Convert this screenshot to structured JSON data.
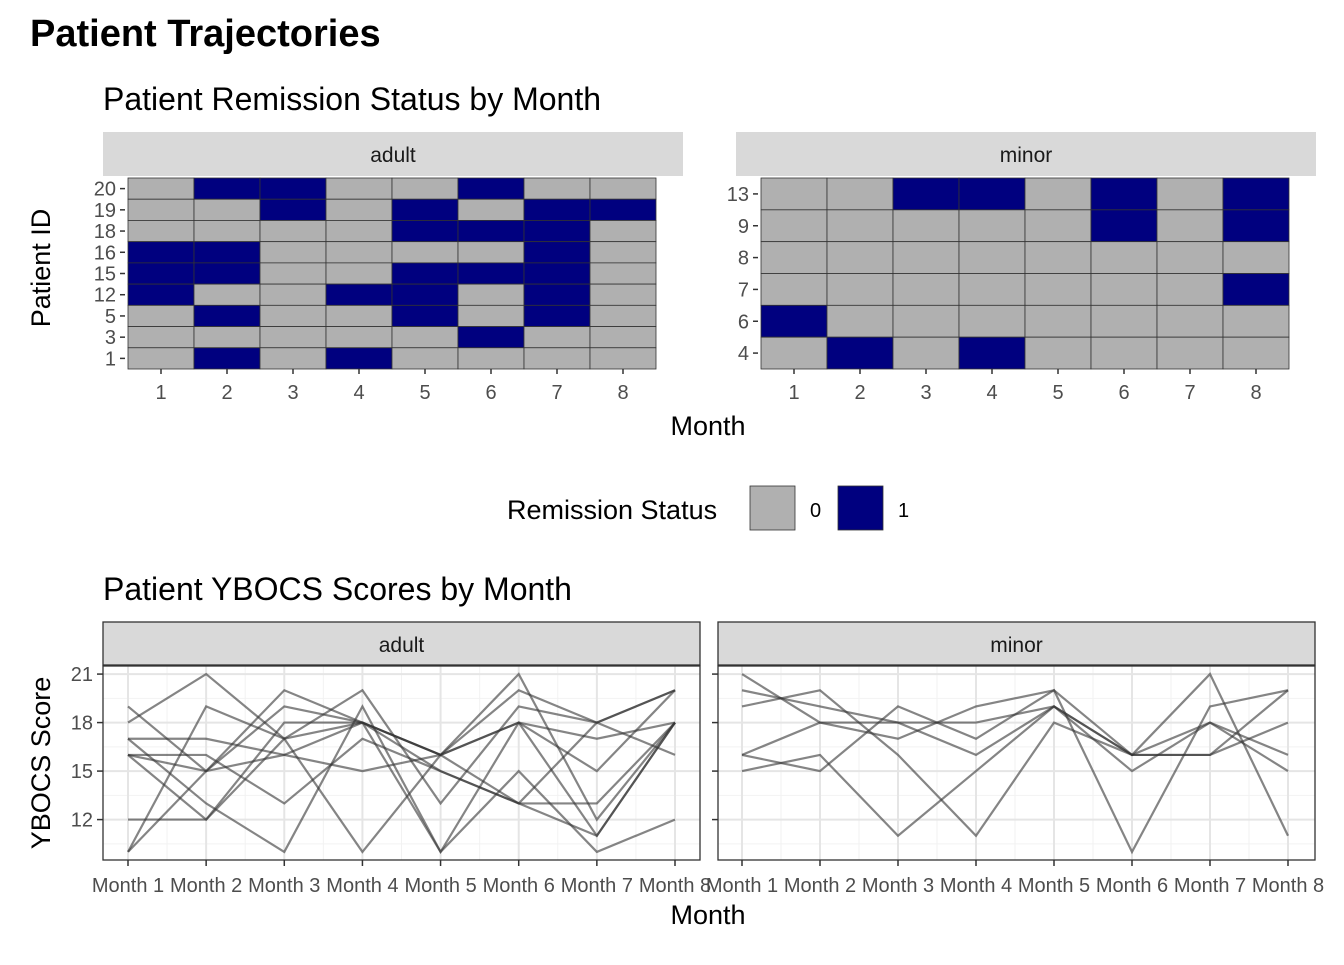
{
  "title": "Patient Trajectories",
  "chart_data": [
    {
      "type": "heatmap",
      "title": "Patient Remission Status by Month",
      "xlabel": "Month",
      "ylabel": "Patient ID",
      "x": [
        1,
        2,
        3,
        4,
        5,
        6,
        7,
        8
      ],
      "legend": {
        "title": "Remission Status",
        "placement": "bottom",
        "entries": [
          {
            "label": "0",
            "color": "#b0b0b0"
          },
          {
            "label": "1",
            "color": "#00007f"
          }
        ]
      },
      "panels": [
        {
          "name": "adult",
          "patients": [
            "20",
            "19",
            "18",
            "16",
            "15",
            "12",
            "5",
            "3",
            "1"
          ],
          "status": [
            [
              0,
              1,
              1,
              0,
              0,
              1,
              0,
              0
            ],
            [
              0,
              0,
              1,
              0,
              1,
              0,
              1,
              1
            ],
            [
              0,
              0,
              0,
              0,
              1,
              1,
              1,
              0
            ],
            [
              1,
              1,
              0,
              0,
              0,
              0,
              1,
              0
            ],
            [
              1,
              1,
              0,
              0,
              1,
              1,
              1,
              0
            ],
            [
              1,
              0,
              0,
              1,
              1,
              0,
              1,
              0
            ],
            [
              0,
              1,
              0,
              0,
              1,
              0,
              1,
              0
            ],
            [
              0,
              0,
              0,
              0,
              0,
              1,
              0,
              0
            ],
            [
              0,
              1,
              0,
              1,
              0,
              0,
              0,
              0
            ]
          ]
        },
        {
          "name": "minor",
          "patients": [
            "13",
            "9",
            "8",
            "7",
            "6",
            "4"
          ],
          "status": [
            [
              0,
              0,
              1,
              1,
              0,
              1,
              0,
              1
            ],
            [
              0,
              0,
              0,
              0,
              0,
              1,
              0,
              1
            ],
            [
              0,
              0,
              0,
              0,
              0,
              0,
              0,
              0
            ],
            [
              0,
              0,
              0,
              0,
              0,
              0,
              0,
              1
            ],
            [
              1,
              0,
              0,
              0,
              0,
              0,
              0,
              0
            ],
            [
              0,
              1,
              0,
              1,
              0,
              0,
              0,
              0
            ]
          ]
        }
      ]
    },
    {
      "type": "line",
      "title": "Patient YBOCS Scores by Month",
      "xlabel": "Month",
      "ylabel": "YBOCS Score",
      "categories": [
        "Month 1",
        "Month 2",
        "Month 3",
        "Month 4",
        "Month 5",
        "Month 6",
        "Month 7",
        "Month 8"
      ],
      "yticks": [
        12,
        15,
        18,
        21
      ],
      "ylim": [
        9.5,
        21.5
      ],
      "grid": true,
      "line_color": "#333333",
      "panels": [
        {
          "name": "adult",
          "series": [
            {
              "values": [
                19,
                15,
                20,
                18,
                16,
                18,
                11,
                18
              ]
            },
            {
              "values": [
                18,
                21,
                17,
                18,
                15,
                13,
                18,
                20
              ]
            },
            {
              "values": [
                17,
                17,
                16,
                18,
                16,
                20,
                18,
                16
              ]
            },
            {
              "values": [
                16,
                12,
                17,
                10,
                16,
                21,
                12,
                18
              ]
            },
            {
              "values": [
                12,
                12,
                18,
                18,
                10,
                18,
                17,
                18
              ]
            },
            {
              "values": [
                10,
                19,
                17,
                20,
                13,
                19,
                18,
                20
              ]
            },
            {
              "values": [
                17,
                13,
                10,
                19,
                10,
                15,
                10,
                12
              ]
            },
            {
              "values": [
                16,
                15,
                19,
                18,
                16,
                13,
                13,
                18
              ]
            },
            {
              "values": [
                16,
                16,
                13,
                17,
                15,
                13,
                11,
                18
              ]
            },
            {
              "values": [
                10,
                15,
                16,
                15,
                16,
                18,
                15,
                20
              ]
            }
          ]
        },
        {
          "name": "minor",
          "series": [
            {
              "values": [
                21,
                18,
                17,
                19,
                20,
                16,
                18,
                15
              ]
            },
            {
              "values": [
                20,
                19,
                18,
                16,
                19,
                16,
                21,
                11
              ]
            },
            {
              "values": [
                19,
                20,
                16,
                11,
                18,
                16,
                16,
                18
              ]
            },
            {
              "values": [
                16,
                15,
                19,
                17,
                20,
                10,
                19,
                20
              ]
            },
            {
              "values": [
                15,
                16,
                11,
                15,
                19,
                15,
                18,
                16
              ]
            },
            {
              "values": [
                16,
                18,
                18,
                18,
                19,
                16,
                16,
                20
              ]
            }
          ]
        }
      ]
    }
  ]
}
